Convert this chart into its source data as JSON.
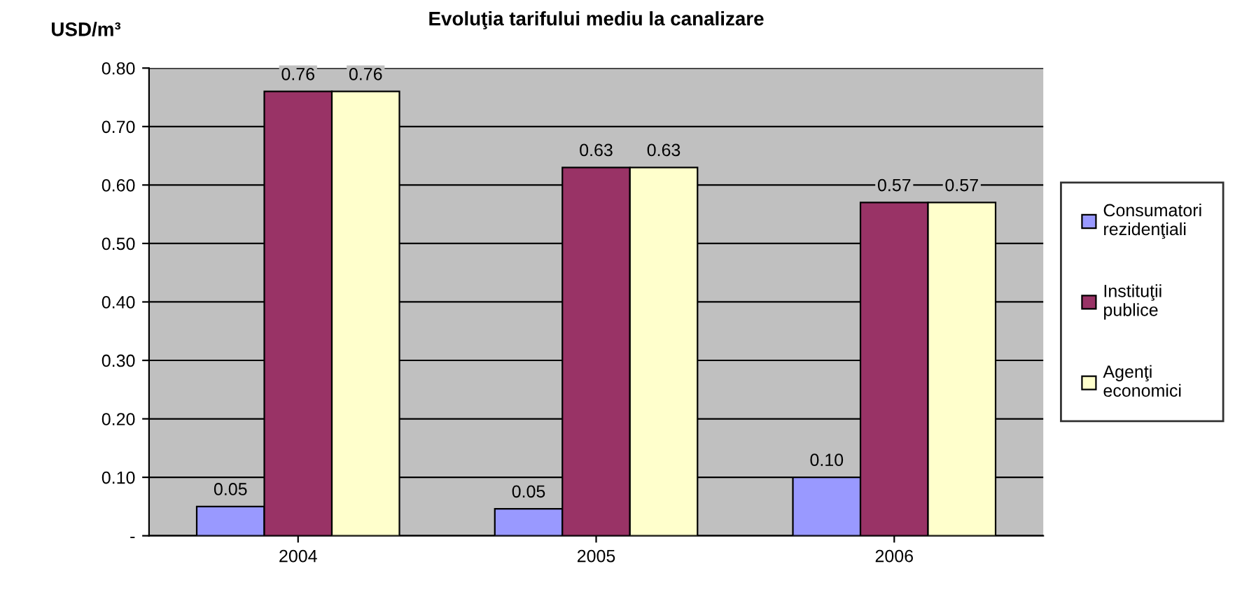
{
  "chart_data": {
    "type": "bar",
    "title": "Evoluţia tarifului mediu la canalizare",
    "ylabel": "USD/m³",
    "categories": [
      "2004",
      "2005",
      "2006"
    ],
    "series": [
      {
        "name": "Consumatori rezidenţiali",
        "color": "#9999ff",
        "values": [
          0.05,
          0.046,
          0.1
        ],
        "value_labels": [
          "0.05",
          "0.05",
          "0.10"
        ]
      },
      {
        "name": "Instituţii publice",
        "color": "#993366",
        "values": [
          0.76,
          0.63,
          0.57
        ],
        "value_labels": [
          "0.76",
          "0.63",
          "0.57"
        ]
      },
      {
        "name": "Agenţi economici",
        "color": "#ffffcc",
        "values": [
          0.76,
          0.63,
          0.57
        ],
        "value_labels": [
          "0.76",
          "0.63",
          "0.57"
        ]
      }
    ],
    "ylim": [
      0,
      0.8
    ],
    "yticks": [
      {
        "value": 0,
        "label": "-"
      },
      {
        "value": 0.1,
        "label": "0.10"
      },
      {
        "value": 0.2,
        "label": "0.20"
      },
      {
        "value": 0.3,
        "label": "0.30"
      },
      {
        "value": 0.4,
        "label": "0.40"
      },
      {
        "value": 0.5,
        "label": "0.50"
      },
      {
        "value": 0.6,
        "label": "0.60"
      },
      {
        "value": 0.7,
        "label": "0.70"
      },
      {
        "value": 0.8,
        "label": "0.80"
      }
    ],
    "grid": "y",
    "legend": "right"
  }
}
